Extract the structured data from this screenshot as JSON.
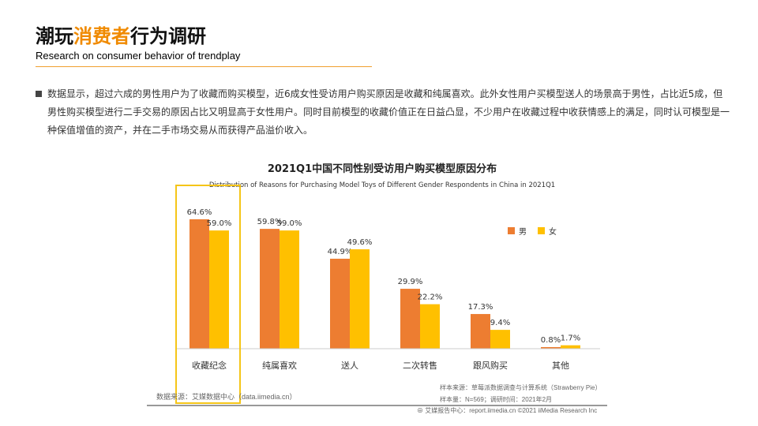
{
  "header": {
    "title_pre": "潮玩",
    "title_highlight": "消费者",
    "title_post": "行为调研",
    "subtitle": "Research on consumer behavior of trendplay"
  },
  "paragraph": "数据显示，超过六成的男性用户为了收藏而购买模型，近6成女性受访用户购买原因是收藏和纯属喜欢。此外女性用户买模型送人的场景高于男性，占比近5成，但男性购买模型进行二手交易的原因占比又明显高于女性用户。同时目前模型的收藏价值正在日益凸显，不少用户在收藏过程中收获情感上的满足，同时认可模型是一种保值增值的资产，并在二手市场交易从而获得产品溢价收入。",
  "chart_data": {
    "type": "bar",
    "title": "2021Q1中国不同性别受访用户购买模型原因分布",
    "subtitle": "Distribution of Reasons for Purchasing Model Toys of Different Gender Respondents in China in 2021Q1",
    "categories": [
      "收藏纪念",
      "纯属喜欢",
      "送人",
      "二次转售",
      "跟风购买",
      "其他"
    ],
    "series": [
      {
        "name": "男",
        "color": "#ED7D31",
        "values": [
          64.6,
          59.8,
          44.9,
          29.9,
          17.3,
          0.8
        ]
      },
      {
        "name": "女",
        "color": "#FFC000",
        "values": [
          59.0,
          59.0,
          49.6,
          22.2,
          9.4,
          1.7
        ]
      }
    ],
    "unit": "%",
    "ylim": [
      0,
      70
    ],
    "grid": false,
    "legend": "top-right",
    "highlighted_category": "收藏纪念"
  },
  "footer": {
    "source": "数据来源：艾媒数据中心（data.iimedia.cn）",
    "sample_source": "样本来源：草莓派数据调查与计算系统（Strawberry Pie）",
    "sample_size": "样本量：N=569；调研时间：2021年2月",
    "copyright": "艾媒报告中心：report.iimedia.cn  ©2021  iiMedia Research Inc"
  }
}
